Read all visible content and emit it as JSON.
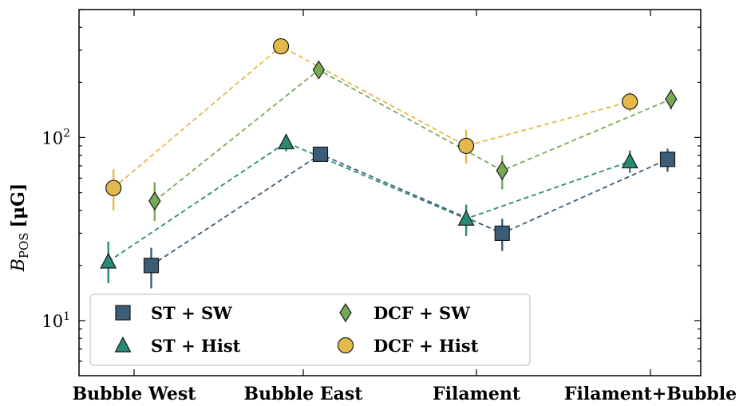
{
  "chart_data": {
    "type": "scatter",
    "scale_y": "log",
    "ylim": [
      5,
      500
    ],
    "categories": [
      "Bubble West",
      "Bubble East",
      "Filament",
      "Filament+Bubble"
    ],
    "ylabel": {
      "main": "B",
      "sub": "POS",
      "unit": "[μG]"
    },
    "yticks": [
      {
        "base": "10",
        "exp": "1",
        "value": 10
      },
      {
        "base": "10",
        "exp": "2",
        "value": 100
      }
    ],
    "legend": {
      "placement": "lower-left"
    },
    "series": [
      {
        "name": "ST + SW",
        "marker": "square",
        "color": "#3b5d78",
        "points": [
          {
            "category": "Bubble West",
            "offset": 0.1,
            "y": 20,
            "err_low": 15,
            "err_high": 25
          },
          {
            "category": "Bubble East",
            "offset": 0.1,
            "y": 81,
            "err_low": 78,
            "err_high": 87
          },
          {
            "category": "Filament",
            "offset": 0.15,
            "y": 30,
            "err_low": 24,
            "err_high": 36
          },
          {
            "category": "Filament+Bubble",
            "offset": 0.1,
            "y": 76,
            "err_low": 65,
            "err_high": 87
          }
        ]
      },
      {
        "name": "ST + Hist",
        "marker": "triangle",
        "color": "#2a8b74",
        "points": [
          {
            "category": "Bubble West",
            "offset": -0.15,
            "y": 21,
            "err_low": 16,
            "err_high": 27
          },
          {
            "category": "Bubble East",
            "offset": -0.1,
            "y": 94,
            "err_low": 84,
            "err_high": 104
          },
          {
            "category": "Filament",
            "offset": -0.06,
            "y": 36,
            "err_low": 29,
            "err_high": 43
          },
          {
            "category": "Filament+Bubble",
            "offset": -0.12,
            "y": 74,
            "err_low": 64,
            "err_high": 85
          }
        ]
      },
      {
        "name": "DCF + SW",
        "marker": "diamond",
        "color": "#77aa55",
        "points": [
          {
            "category": "Bubble West",
            "offset": 0.12,
            "y": 45,
            "err_low": 35,
            "err_high": 57
          },
          {
            "category": "Bubble East",
            "offset": 0.09,
            "y": 234,
            "err_low": 220,
            "err_high": 250
          },
          {
            "category": "Filament",
            "offset": 0.15,
            "y": 66,
            "err_low": 52,
            "err_high": 80
          },
          {
            "category": "Filament+Bubble",
            "offset": 0.12,
            "y": 162,
            "err_low": 142,
            "err_high": 183
          }
        ]
      },
      {
        "name": "DCF + Hist",
        "marker": "circle",
        "color": "#e4b94b",
        "points": [
          {
            "category": "Bubble West",
            "offset": -0.12,
            "y": 53,
            "err_low": 40,
            "err_high": 67
          },
          {
            "category": "Bubble East",
            "offset": -0.13,
            "y": 315,
            "err_low": 295,
            "err_high": 330
          },
          {
            "category": "Filament",
            "offset": -0.06,
            "y": 90,
            "err_low": 72,
            "err_high": 110
          },
          {
            "category": "Filament+Bubble",
            "offset": -0.12,
            "y": 157,
            "err_low": 138,
            "err_high": 178
          }
        ]
      }
    ]
  }
}
